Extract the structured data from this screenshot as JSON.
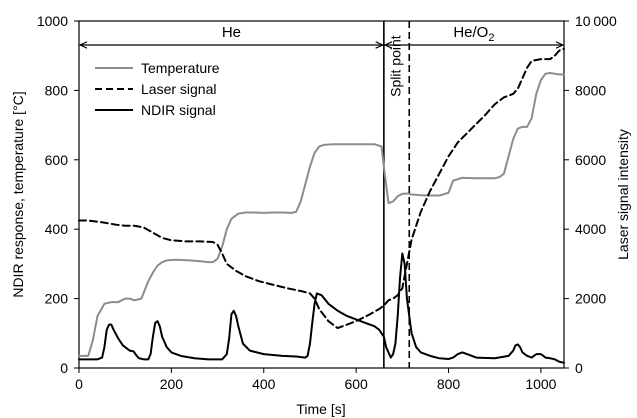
{
  "chart_data": {
    "type": "line",
    "xlabel": "Time [s]",
    "ylabel_left": "NDIR response, temperature [°C]",
    "ylabel_right": "Laser signal intensity",
    "xlim": [
      0,
      1050
    ],
    "ylim_left": [
      0,
      1000
    ],
    "ylim_right": [
      0,
      10000
    ],
    "x_ticks": [
      0,
      200,
      400,
      600,
      800,
      1000
    ],
    "y_left_ticks": [
      0,
      200,
      400,
      600,
      800,
      1000
    ],
    "y_right_ticks": [
      0,
      2000,
      4000,
      6000,
      8000,
      10000
    ],
    "y_right_tick_labels": [
      "0",
      "2000",
      "4000",
      "6000",
      "8000",
      "10 000"
    ],
    "grid": false,
    "legend_position": "top-left",
    "regions": [
      {
        "label": "He",
        "from": 0,
        "to": 660
      },
      {
        "label": "He/O",
        "sub": "2",
        "from": 660,
        "to": 1050
      }
    ],
    "vertical_lines": [
      {
        "x": 660,
        "style": "solid"
      },
      {
        "x": 715,
        "style": "dashed"
      }
    ],
    "annotation": {
      "text": "Split point",
      "x": 685,
      "y": 870
    },
    "series": [
      {
        "name": "Temperature",
        "axis": "left",
        "color": "#8c8c8c",
        "dash": "solid",
        "x": [
          0,
          20,
          30,
          40,
          55,
          70,
          85,
          100,
          110,
          120,
          135,
          150,
          160,
          170,
          180,
          190,
          210,
          240,
          260,
          280,
          290,
          300,
          310,
          320,
          330,
          345,
          360,
          380,
          400,
          420,
          440,
          460,
          470,
          480,
          490,
          500,
          510,
          520,
          530,
          550,
          580,
          610,
          640,
          655,
          660,
          670,
          680,
          690,
          700,
          710,
          720,
          740,
          760,
          780,
          800,
          810,
          830,
          860,
          900,
          910,
          920,
          930,
          940,
          950,
          960,
          970,
          980,
          990,
          1000,
          1010,
          1020,
          1030,
          1040,
          1050
        ],
        "y": [
          35,
          35,
          80,
          150,
          185,
          190,
          190,
          200,
          200,
          195,
          200,
          250,
          275,
          295,
          305,
          310,
          312,
          310,
          308,
          305,
          305,
          315,
          350,
          400,
          430,
          445,
          448,
          448,
          447,
          448,
          448,
          447,
          450,
          480,
          530,
          580,
          620,
          638,
          643,
          645,
          645,
          645,
          645,
          638,
          580,
          475,
          480,
          495,
          502,
          503,
          500,
          498,
          497,
          497,
          505,
          540,
          548,
          547,
          547,
          550,
          560,
          610,
          660,
          690,
          695,
          695,
          720,
          790,
          830,
          848,
          850,
          848,
          846,
          846
        ]
      },
      {
        "name": "Laser signal",
        "axis": "right",
        "color": "#000000",
        "dash": "dashed",
        "x": [
          0,
          20,
          50,
          80,
          100,
          120,
          140,
          160,
          180,
          200,
          230,
          260,
          290,
          300,
          310,
          320,
          340,
          360,
          390,
          420,
          450,
          480,
          500,
          510,
          520,
          540,
          560,
          600,
          630,
          650,
          660,
          670,
          680,
          690,
          700,
          710,
          720,
          740,
          760,
          780,
          800,
          820,
          850,
          880,
          900,
          920,
          940,
          950,
          960,
          970,
          980,
          1000,
          1020,
          1030,
          1040,
          1050
        ],
        "y": [
          4250,
          4250,
          4200,
          4130,
          4100,
          4100,
          4050,
          3900,
          3750,
          3680,
          3650,
          3650,
          3630,
          3550,
          3300,
          3000,
          2800,
          2650,
          2500,
          2400,
          2300,
          2220,
          2150,
          2000,
          1700,
          1350,
          1150,
          1350,
          1550,
          1700,
          1800,
          1950,
          2000,
          2100,
          2300,
          3000,
          3700,
          4500,
          5100,
          5600,
          6100,
          6500,
          6900,
          7300,
          7600,
          7800,
          7900,
          8050,
          8350,
          8650,
          8850,
          8900,
          8900,
          9000,
          9150,
          9200
        ]
      },
      {
        "name": "NDIR signal",
        "axis": "left",
        "color": "#000000",
        "dash": "solid",
        "x": [
          0,
          40,
          50,
          55,
          60,
          65,
          70,
          75,
          85,
          95,
          105,
          110,
          118,
          125,
          130,
          140,
          150,
          155,
          160,
          165,
          170,
          175,
          180,
          190,
          200,
          220,
          250,
          280,
          300,
          310,
          320,
          325,
          330,
          335,
          340,
          345,
          355,
          370,
          400,
          440,
          470,
          490,
          495,
          500,
          505,
          510,
          515,
          525,
          540,
          560,
          580,
          600,
          620,
          640,
          650,
          660,
          665,
          670,
          675,
          680,
          685,
          690,
          695,
          700,
          705,
          710,
          715,
          720,
          730,
          740,
          760,
          780,
          800,
          810,
          820,
          830,
          840,
          860,
          900,
          930,
          940,
          945,
          950,
          955,
          960,
          970,
          980,
          990,
          1000,
          1010,
          1020,
          1030,
          1040,
          1050
        ],
        "y": [
          25,
          25,
          30,
          60,
          110,
          125,
          125,
          110,
          85,
          65,
          55,
          50,
          48,
          35,
          28,
          25,
          25,
          40,
          90,
          130,
          135,
          120,
          90,
          60,
          45,
          35,
          28,
          25,
          25,
          25,
          40,
          85,
          155,
          165,
          150,
          120,
          70,
          50,
          40,
          35,
          33,
          30,
          35,
          70,
          130,
          185,
          215,
          210,
          185,
          165,
          150,
          140,
          130,
          120,
          110,
          90,
          60,
          45,
          30,
          40,
          70,
          150,
          260,
          330,
          300,
          200,
          150,
          100,
          60,
          45,
          35,
          28,
          26,
          30,
          40,
          45,
          40,
          30,
          28,
          35,
          50,
          65,
          68,
          60,
          45,
          35,
          30,
          40,
          40,
          30,
          28,
          25,
          18,
          15
        ]
      }
    ]
  }
}
